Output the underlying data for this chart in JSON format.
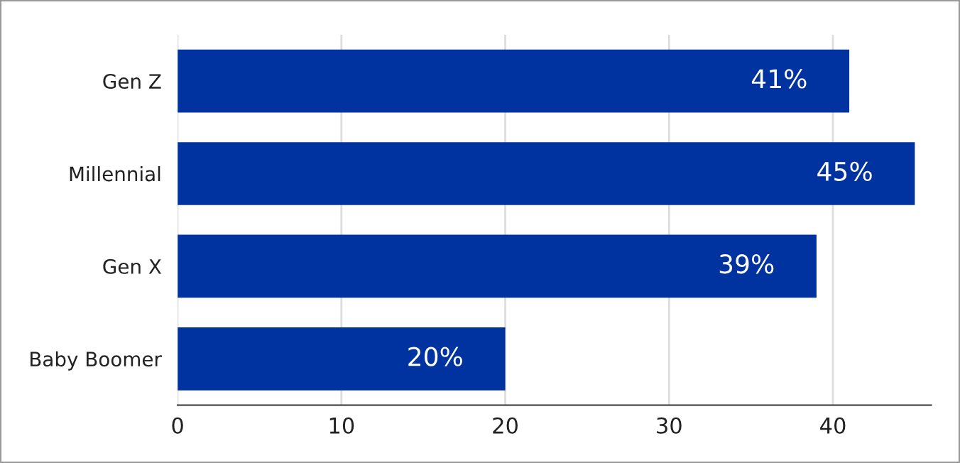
{
  "chart_data": {
    "type": "bar",
    "orientation": "horizontal",
    "categories": [
      "Gen Z",
      "Millennial",
      "Gen X",
      "Baby Boomer"
    ],
    "values": [
      41,
      45,
      39,
      20
    ],
    "value_labels": [
      "41%",
      "45%",
      "39%",
      "20%"
    ],
    "color": "#0033a0",
    "xlim": [
      0,
      46
    ],
    "xticks": [
      0,
      10,
      20,
      30,
      40
    ],
    "grid": "x"
  }
}
